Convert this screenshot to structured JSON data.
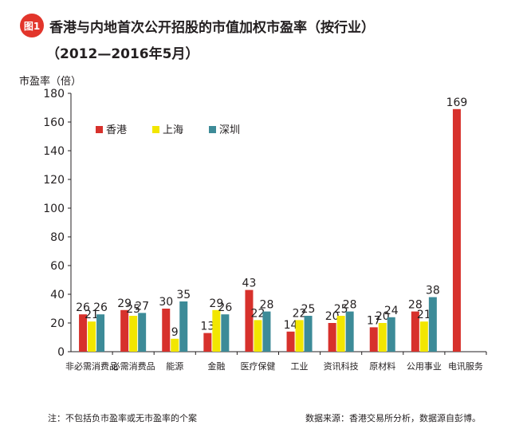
{
  "header": {
    "badge": "图1",
    "title": "香港与内地首次公开招股的市值加权市盈率（按行业）",
    "subtitle": "（2012—2016年5月）"
  },
  "footer": {
    "note": "注：不包括负市盈率或无市盈率的个案",
    "source": "数据来源：香港交易所分析，数据源自彭博。"
  },
  "colors": {
    "hongkong": "#d7312c",
    "shanghai": "#f2e600",
    "shenzhen": "#3d8b98"
  },
  "chart_data": {
    "type": "bar",
    "ylabel": "市盈率（倍）",
    "ylim": [
      0,
      180
    ],
    "yticks": [
      0,
      20,
      40,
      60,
      80,
      100,
      120,
      140,
      160,
      180
    ],
    "legend_position": "upper-left",
    "categories": [
      "非必需消费品",
      "必需消费品",
      "能源",
      "金融",
      "医疗保健",
      "工业",
      "资讯科技",
      "原材料",
      "公用事业",
      "电讯服务"
    ],
    "series": [
      {
        "name": "香港",
        "color": "#d7312c",
        "values": [
          26,
          29,
          30,
          13,
          43,
          14,
          20,
          17,
          28,
          169
        ]
      },
      {
        "name": "上海",
        "color": "#f2e600",
        "values": [
          21,
          25,
          9,
          29,
          22,
          22,
          25,
          20,
          21,
          null
        ]
      },
      {
        "name": "深圳",
        "color": "#3d8b98",
        "values": [
          26,
          27,
          35,
          26,
          28,
          25,
          28,
          24,
          38,
          null
        ]
      }
    ]
  }
}
